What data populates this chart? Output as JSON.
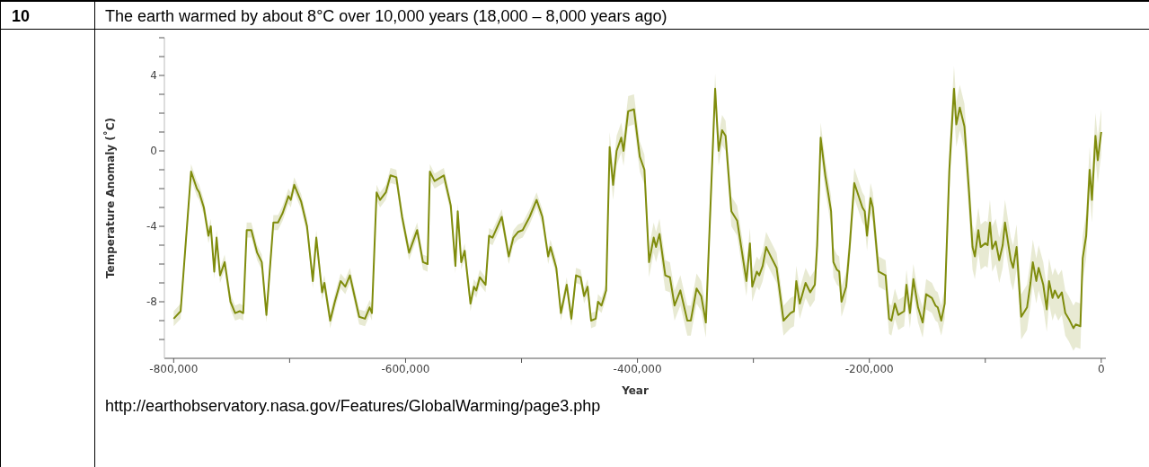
{
  "chart_data": {
    "type": "line",
    "title": "The earth warmed by about 8°C over 10,000 years (18,000 – 8,000 years ago)",
    "xlabel": "Year",
    "ylabel": "Temperature Anomaly (˚C)",
    "annotations": [
      "10",
      "http://earthobservatory.nasa.gov/Features/GlobalWarming/page3.php"
    ],
    "xlim": [
      -808000,
      4000
    ],
    "xticks": [
      {
        "value": -800000,
        "label": "-800,000"
      },
      {
        "value": -700000,
        "label": null
      },
      {
        "value": -600000,
        "label": "-600,000"
      },
      {
        "value": -500000,
        "label": null
      },
      {
        "value": -400000,
        "label": "-400,000"
      },
      {
        "value": -300000,
        "label": null
      },
      {
        "value": -200000,
        "label": "-200,000"
      },
      {
        "value": -100000,
        "label": null
      },
      0
    ],
    "ylim": [
      -11,
      6
    ],
    "yticks": [
      {
        "value": -10,
        "label": null
      },
      {
        "value": -9,
        "label": null
      },
      -8,
      {
        "value": -7,
        "label": null
      },
      {
        "value": -6,
        "label": null
      },
      {
        "value": -5,
        "label": null
      },
      -4,
      {
        "value": -3,
        "label": null
      },
      {
        "value": -2,
        "label": null
      },
      {
        "value": -1,
        "label": null
      },
      0,
      {
        "value": 1,
        "label": null
      },
      {
        "value": 2,
        "label": null
      },
      {
        "value": 3,
        "label": null
      },
      4,
      {
        "value": 5,
        "label": null
      },
      {
        "value": 6,
        "label": null
      }
    ],
    "x": [
      -800000,
      -794000,
      -785000,
      -780000,
      -778000,
      -774000,
      -770000,
      -768000,
      -765000,
      -763000,
      -760000,
      -756000,
      -751000,
      -747000,
      -743000,
      -740000,
      -737000,
      -733000,
      -728000,
      -724000,
      -720000,
      -714000,
      -710000,
      -706000,
      -701000,
      -699000,
      -696000,
      -690000,
      -685000,
      -680000,
      -677000,
      -672000,
      -670000,
      -665000,
      -661000,
      -656000,
      -652000,
      -648000,
      -644000,
      -640000,
      -635000,
      -631000,
      -629000,
      -625000,
      -622000,
      -617000,
      -613000,
      -608000,
      -603000,
      -597000,
      -590000,
      -585000,
      -581000,
      -579000,
      -575000,
      -567000,
      -561000,
      -557000,
      -555000,
      -552000,
      -549000,
      -544000,
      -541000,
      -539000,
      -536000,
      -531000,
      -528000,
      -525000,
      -517000,
      -511000,
      -507000,
      -503000,
      -499000,
      -493000,
      -487000,
      -482000,
      -477000,
      -475000,
      -470000,
      -466000,
      -461000,
      -457000,
      -453000,
      -449000,
      -446000,
      -443000,
      -440000,
      -436000,
      -434000,
      -431000,
      -427000,
      -424000,
      -421000,
      -418000,
      -414000,
      -412000,
      -408000,
      -403000,
      -398000,
      -394000,
      -390000,
      -386000,
      -384000,
      -381000,
      -376000,
      -372000,
      -368000,
      -363000,
      -357000,
      -354000,
      -349000,
      -345000,
      -341000,
      -333000,
      -330000,
      -327000,
      -324000,
      -319000,
      -314000,
      -306000,
      -303000,
      -301000,
      -297000,
      -295000,
      -292000,
      -289000,
      -285000,
      -280000,
      -274000,
      -268000,
      -265000,
      -263000,
      -260000,
      -255000,
      -251000,
      -247000,
      -245000,
      -242000,
      -238000,
      -233000,
      -231000,
      -228000,
      -226000,
      -224000,
      -220000,
      -217000,
      -213000,
      -206000,
      -204000,
      -202000,
      -199000,
      -197000,
      -192000,
      -186000,
      -183000,
      -181000,
      -178000,
      -175000,
      -170000,
      -168000,
      -165000,
      -162000,
      -158000,
      -154000,
      -151000,
      -146000,
      -143000,
      -141000,
      -138000,
      -135000,
      -131000,
      -127000,
      -125000,
      -122000,
      -118000,
      -114000,
      -111000,
      -109000,
      -106000,
      -104000,
      -100000,
      -98000,
      -96000,
      -94000,
      -91000,
      -88000,
      -85000,
      -83000,
      -78000,
      -76000,
      -73000,
      -69000,
      -64000,
      -61000,
      -59000,
      -56000,
      -54000,
      -50000,
      -47000,
      -45000,
      -42000,
      -40000,
      -37000,
      -34000,
      -31000,
      -28000,
      -24000,
      -22000,
      -18000,
      -16000,
      -13000,
      -10000,
      -8000,
      -5000,
      -3000,
      0
    ],
    "series": [
      {
        "color": "#7f8c0c",
        "values": [
          -8.9,
          -8.5,
          -1.1,
          -2.0,
          -2.2,
          -3.0,
          -4.5,
          -4.0,
          -6.4,
          -4.6,
          -6.6,
          -5.9,
          -8.0,
          -8.6,
          -8.5,
          -8.6,
          -4.2,
          -4.2,
          -5.4,
          -5.9,
          -8.7,
          -3.8,
          -3.8,
          -3.3,
          -2.4,
          -2.6,
          -1.8,
          -2.7,
          -4.0,
          -6.9,
          -4.6,
          -7.5,
          -7.0,
          -9.0,
          -8.0,
          -6.9,
          -7.2,
          -6.6,
          -7.7,
          -8.8,
          -8.9,
          -8.3,
          -8.6,
          -2.2,
          -2.6,
          -2.2,
          -1.3,
          -1.4,
          -3.5,
          -5.4,
          -4.2,
          -5.9,
          -6.0,
          -1.1,
          -1.6,
          -1.3,
          -2.9,
          -6.1,
          -3.2,
          -5.9,
          -5.3,
          -8.1,
          -7.2,
          -7.4,
          -6.7,
          -7.1,
          -4.5,
          -4.6,
          -3.5,
          -5.6,
          -4.6,
          -4.3,
          -4.2,
          -3.5,
          -2.6,
          -3.5,
          -5.6,
          -5.1,
          -6.2,
          -8.6,
          -7.1,
          -8.9,
          -6.6,
          -6.7,
          -7.7,
          -7.2,
          -9.0,
          -8.9,
          -8.0,
          -8.2,
          -7.4,
          0.2,
          -1.8,
          0.0,
          0.7,
          0.0,
          2.1,
          2.2,
          -0.3,
          -1.0,
          -5.9,
          -4.6,
          -5.1,
          -4.4,
          -6.6,
          -6.7,
          -8.2,
          -7.4,
          -9.0,
          -9.0,
          -7.3,
          -7.7,
          -9.1,
          3.3,
          0.0,
          1.1,
          0.8,
          -3.2,
          -3.7,
          -6.9,
          -4.9,
          -7.2,
          -6.4,
          -6.6,
          -6.1,
          -5.1,
          -5.6,
          -6.2,
          -9.0,
          -8.6,
          -8.5,
          -6.9,
          -8.1,
          -7.0,
          -7.5,
          -7.1,
          -5.0,
          0.7,
          -1.3,
          -3.2,
          -5.9,
          -6.3,
          -6.4,
          -8.0,
          -7.2,
          -5.1,
          -1.7,
          -3.0,
          -3.2,
          -4.5,
          -2.5,
          -3.0,
          -6.4,
          -6.6,
          -8.9,
          -9.0,
          -8.1,
          -8.7,
          -8.5,
          -7.1,
          -8.6,
          -6.8,
          -8.3,
          -9.1,
          -7.6,
          -7.8,
          -8.2,
          -8.3,
          -9.0,
          -8.1,
          -1.0,
          3.3,
          1.4,
          2.3,
          1.3,
          -2.2,
          -5.1,
          -5.6,
          -4.2,
          -5.1,
          -4.9,
          -5.0,
          -3.8,
          -5.2,
          -4.8,
          -5.8,
          -5.0,
          -3.8,
          -5.8,
          -6.2,
          -5.1,
          -8.8,
          -8.3,
          -7.0,
          -5.9,
          -6.9,
          -6.2,
          -7.1,
          -8.4,
          -6.9,
          -7.8,
          -7.4,
          -7.8,
          -7.5,
          -8.6,
          -8.9,
          -9.4,
          -9.2,
          -9.3,
          -5.7,
          -4.5,
          -1.0,
          -2.6,
          0.8,
          -0.5,
          1.0
        ],
        "lower": [
          -9.3,
          -8.9,
          -1.5,
          -2.4,
          -2.6,
          -3.4,
          -4.9,
          -4.4,
          -6.8,
          -5.0,
          -7.0,
          -6.3,
          -8.4,
          -9.0,
          -8.9,
          -9.0,
          -4.6,
          -4.6,
          -5.8,
          -6.3,
          -9.1,
          -4.2,
          -4.2,
          -3.7,
          -2.8,
          -3.0,
          -2.2,
          -3.1,
          -4.4,
          -7.3,
          -5.0,
          -7.9,
          -7.4,
          -9.4,
          -8.4,
          -7.3,
          -7.6,
          -7.0,
          -8.1,
          -9.2,
          -9.3,
          -8.7,
          -9.0,
          -2.6,
          -3.0,
          -2.6,
          -1.7,
          -1.8,
          -3.9,
          -5.8,
          -4.6,
          -6.3,
          -6.4,
          -1.5,
          -2.0,
          -1.7,
          -3.3,
          -6.5,
          -3.6,
          -6.3,
          -5.7,
          -8.5,
          -7.6,
          -7.8,
          -7.1,
          -7.5,
          -4.9,
          -5.0,
          -3.9,
          -6.0,
          -5.0,
          -4.7,
          -4.6,
          -3.9,
          -3.0,
          -3.9,
          -6.0,
          -5.5,
          -6.6,
          -9.0,
          -7.5,
          -9.3,
          -7.0,
          -7.1,
          -8.1,
          -7.6,
          -9.4,
          -9.3,
          -8.4,
          -8.6,
          -7.8,
          -0.6,
          -2.6,
          -0.8,
          -0.1,
          -0.8,
          1.3,
          1.4,
          -1.1,
          -1.8,
          -6.7,
          -5.4,
          -5.9,
          -5.2,
          -7.4,
          -7.5,
          -9.0,
          -8.2,
          -9.8,
          -9.8,
          -8.1,
          -8.5,
          -9.9,
          2.5,
          -0.8,
          0.3,
          0.0,
          -4.0,
          -4.5,
          -7.7,
          -5.7,
          -8.0,
          -7.2,
          -7.4,
          -6.9,
          -5.9,
          -6.4,
          -7.0,
          -9.8,
          -9.4,
          -9.3,
          -7.7,
          -8.9,
          -7.8,
          -8.3,
          -7.9,
          -5.8,
          -0.1,
          -2.1,
          -4.0,
          -6.7,
          -7.1,
          -7.2,
          -8.8,
          -8.0,
          -5.9,
          -2.5,
          -3.8,
          -4.0,
          -5.3,
          -3.3,
          -3.8,
          -7.2,
          -7.4,
          -9.7,
          -9.8,
          -8.9,
          -9.5,
          -9.3,
          -7.9,
          -9.4,
          -7.6,
          -9.1,
          -9.9,
          -8.4,
          -8.6,
          -9.0,
          -9.1,
          -9.8,
          -8.9,
          -2.2,
          2.1,
          0.2,
          1.1,
          0.1,
          -3.4,
          -6.3,
          -6.8,
          -5.4,
          -6.3,
          -6.1,
          -6.2,
          -5.0,
          -6.4,
          -6.0,
          -7.0,
          -6.2,
          -5.0,
          -7.0,
          -7.4,
          -6.3,
          -10.0,
          -9.5,
          -8.2,
          -7.1,
          -8.1,
          -7.4,
          -8.3,
          -9.6,
          -8.1,
          -9.0,
          -8.6,
          -9.0,
          -8.7,
          -9.8,
          -10.1,
          -10.6,
          -10.4,
          -10.5,
          -6.9,
          -5.7,
          -2.2,
          -3.8,
          -0.4,
          -1.7,
          -0.2
        ],
        "upper": [
          -8.5,
          -8.1,
          -0.7,
          -1.6,
          -1.8,
          -2.6,
          -4.1,
          -3.6,
          -6.0,
          -4.2,
          -6.2,
          -5.5,
          -7.6,
          -8.2,
          -8.1,
          -8.2,
          -3.8,
          -3.8,
          -5.0,
          -5.5,
          -8.3,
          -3.4,
          -3.4,
          -2.9,
          -2.0,
          -2.2,
          -1.4,
          -2.3,
          -3.6,
          -6.5,
          -4.2,
          -7.1,
          -6.6,
          -8.6,
          -7.6,
          -6.5,
          -6.8,
          -6.2,
          -7.3,
          -8.4,
          -8.5,
          -7.9,
          -8.2,
          -1.8,
          -2.2,
          -1.8,
          -0.9,
          -1.0,
          -3.1,
          -5.0,
          -3.8,
          -5.5,
          -5.6,
          -0.7,
          -1.2,
          -0.9,
          -2.5,
          -5.7,
          -2.8,
          -5.5,
          -4.9,
          -7.7,
          -6.8,
          -7.0,
          -6.3,
          -6.7,
          -4.1,
          -4.2,
          -3.1,
          -5.2,
          -4.2,
          -3.9,
          -3.8,
          -3.1,
          -2.2,
          -3.1,
          -5.2,
          -4.7,
          -5.8,
          -8.2,
          -6.7,
          -8.5,
          -6.2,
          -6.3,
          -7.3,
          -6.8,
          -8.6,
          -8.5,
          -7.6,
          -7.8,
          -7.0,
          1.0,
          -1.0,
          0.8,
          1.5,
          0.8,
          2.9,
          3.0,
          0.5,
          -0.2,
          -5.1,
          -3.8,
          -4.3,
          -3.6,
          -5.8,
          -5.9,
          -7.4,
          -6.6,
          -8.2,
          -8.2,
          -6.5,
          -6.9,
          -8.3,
          4.1,
          0.8,
          1.9,
          1.6,
          -2.4,
          -2.9,
          -6.1,
          -4.1,
          -6.4,
          -5.6,
          -5.8,
          -5.3,
          -4.3,
          -4.8,
          -5.4,
          -8.2,
          -7.8,
          -7.7,
          -6.1,
          -7.3,
          -6.2,
          -6.7,
          -6.3,
          -4.2,
          1.5,
          -0.5,
          -2.4,
          -5.1,
          -5.5,
          -5.6,
          -7.2,
          -6.4,
          -4.3,
          -0.9,
          -2.2,
          -2.4,
          -3.7,
          -1.7,
          -2.2,
          -5.6,
          -5.8,
          -8.1,
          -8.2,
          -7.3,
          -7.9,
          -7.7,
          -6.3,
          -7.8,
          -6.0,
          -7.5,
          -8.3,
          -6.8,
          -7.0,
          -7.4,
          -7.5,
          -8.2,
          -7.3,
          0.2,
          4.5,
          2.6,
          3.5,
          2.5,
          -1.0,
          -3.9,
          -4.4,
          -3.0,
          -3.9,
          -3.7,
          -3.8,
          -2.6,
          -4.0,
          -3.6,
          -4.6,
          -3.8,
          -2.6,
          -4.6,
          -5.0,
          -3.9,
          -7.6,
          -7.1,
          -5.8,
          -4.7,
          -5.7,
          -5.0,
          -5.9,
          -7.2,
          -5.7,
          -6.6,
          -6.2,
          -6.6,
          -6.3,
          -7.4,
          -7.7,
          -8.2,
          -8.0,
          -8.1,
          -4.5,
          -3.3,
          0.2,
          -1.4,
          2.0,
          0.7,
          2.2
        ]
      }
    ]
  }
}
